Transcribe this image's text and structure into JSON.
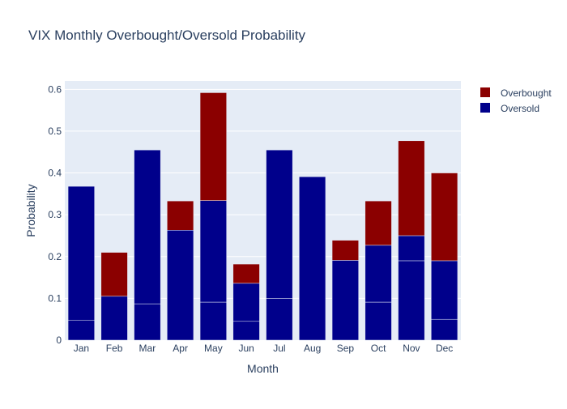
{
  "chart_data": {
    "type": "bar",
    "barmode": "stack",
    "title": "VIX Monthly Overbought/Oversold Probability",
    "xlabel": "Month",
    "ylabel": "Probability",
    "ylim": [
      0,
      0.62
    ],
    "yticks": [
      0,
      0.1,
      0.2,
      0.3,
      0.4,
      0.5,
      0.6
    ],
    "ytick_labels": [
      "0",
      "0.1",
      "0.2",
      "0.3",
      "0.4",
      "0.5",
      "0.6"
    ],
    "categories": [
      "Jan",
      "Feb",
      "Mar",
      "Apr",
      "May",
      "Jun",
      "Jul",
      "Aug",
      "Sep",
      "Oct",
      "Nov",
      "Dec"
    ],
    "legend_position": "top-right",
    "series": [
      {
        "name": "Oversold",
        "color": "#00008b",
        "segments": [
          [
            0.048,
            0.32
          ],
          [
            0.105
          ],
          [
            0.087,
            0.368
          ],
          [
            0.263
          ],
          [
            0.091,
            0.243
          ],
          [
            0.045,
            0.091
          ],
          [
            0.1,
            0.355
          ],
          [
            0.391
          ],
          [
            0.191
          ],
          [
            0.091,
            0.136
          ],
          [
            0.19,
            0.06
          ],
          [
            0.05,
            0.14
          ]
        ],
        "values": [
          0.368,
          0.105,
          0.455,
          0.263,
          0.334,
          0.136,
          0.455,
          0.391,
          0.191,
          0.227,
          0.25,
          0.19
        ]
      },
      {
        "name": "Overbought",
        "color": "#8b0000",
        "segments": [
          [],
          [
            0.105
          ],
          [],
          [
            0.07
          ],
          [
            0.258
          ],
          [
            0.046
          ],
          [],
          [],
          [
            0.048
          ],
          [
            0.106
          ],
          [
            0.227
          ],
          [
            0.21
          ]
        ],
        "values": [
          0,
          0.105,
          0,
          0.07,
          0.258,
          0.046,
          0,
          0,
          0.048,
          0.106,
          0.227,
          0.21
        ]
      }
    ]
  },
  "colors": {
    "plot_background": "#e5ecf6",
    "grid": "#ffffff",
    "text": "#2a3f5f",
    "segment_edge": "#e5ecf6"
  }
}
